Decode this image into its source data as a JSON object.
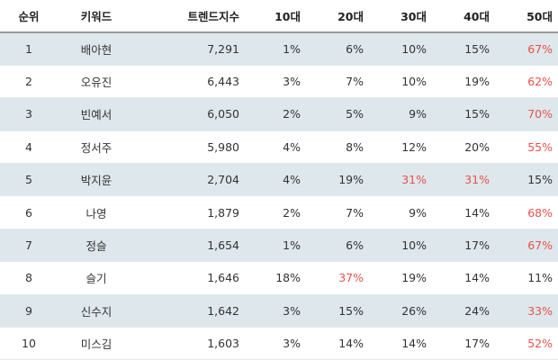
{
  "table": {
    "headers": [
      "순위",
      "키워드",
      "트렌드지수",
      "10대",
      "20대",
      "30대",
      "40대",
      "50대"
    ],
    "highlight_color": "#e8524a",
    "rows": [
      {
        "rank": "1",
        "keyword": "배아현",
        "index": "7,291",
        "p10": "1%",
        "p20": "6%",
        "p30": "10%",
        "p40": "15%",
        "p50": "67%",
        "hl": [
          "p50"
        ]
      },
      {
        "rank": "2",
        "keyword": "오유진",
        "index": "6,443",
        "p10": "3%",
        "p20": "7%",
        "p30": "10%",
        "p40": "19%",
        "p50": "62%",
        "hl": [
          "p50"
        ]
      },
      {
        "rank": "3",
        "keyword": "빈예서",
        "index": "6,050",
        "p10": "2%",
        "p20": "5%",
        "p30": "9%",
        "p40": "15%",
        "p50": "70%",
        "hl": [
          "p50"
        ]
      },
      {
        "rank": "4",
        "keyword": "정서주",
        "index": "5,980",
        "p10": "4%",
        "p20": "8%",
        "p30": "12%",
        "p40": "20%",
        "p50": "55%",
        "hl": [
          "p50"
        ]
      },
      {
        "rank": "5",
        "keyword": "박지윤",
        "index": "2,704",
        "p10": "4%",
        "p20": "19%",
        "p30": "31%",
        "p40": "31%",
        "p50": "15%",
        "hl": [
          "p30",
          "p40"
        ]
      },
      {
        "rank": "6",
        "keyword": "나영",
        "index": "1,879",
        "p10": "2%",
        "p20": "7%",
        "p30": "9%",
        "p40": "14%",
        "p50": "68%",
        "hl": [
          "p50"
        ]
      },
      {
        "rank": "7",
        "keyword": "정슬",
        "index": "1,654",
        "p10": "1%",
        "p20": "6%",
        "p30": "10%",
        "p40": "17%",
        "p50": "67%",
        "hl": [
          "p50"
        ]
      },
      {
        "rank": "8",
        "keyword": "슬기",
        "index": "1,646",
        "p10": "18%",
        "p20": "37%",
        "p30": "19%",
        "p40": "14%",
        "p50": "11%",
        "hl": [
          "p20"
        ]
      },
      {
        "rank": "9",
        "keyword": "신수지",
        "index": "1,642",
        "p10": "3%",
        "p20": "15%",
        "p30": "26%",
        "p40": "24%",
        "p50": "33%",
        "hl": [
          "p50"
        ]
      },
      {
        "rank": "10",
        "keyword": "미스김",
        "index": "1,603",
        "p10": "3%",
        "p20": "14%",
        "p30": "14%",
        "p40": "17%",
        "p50": "52%",
        "hl": [
          "p50"
        ]
      }
    ]
  }
}
